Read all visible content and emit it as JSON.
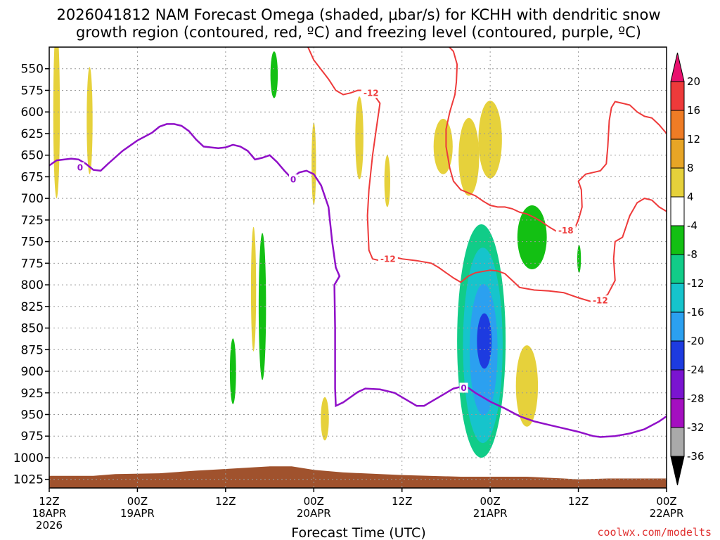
{
  "chart_data": {
    "type": "heatmap",
    "title_line1": "2026041812 NAM Forecast Omega (shaded, μbar/s) for KCHH with dendritic snow",
    "title_line2": "growth region (contoured, red, ºC) and freezing level (contoured, purple, ºC)",
    "xlabel": "Forecast Time (UTC)",
    "credit": "coolwx.com/modelts",
    "x_unit": "hours since 2026-04-18 12Z",
    "x_range": [
      0,
      84
    ],
    "y_unit": "hPa",
    "y_range": [
      1035,
      525
    ],
    "y_ticks": [
      "550",
      "575",
      "600",
      "625",
      "650",
      "675",
      "700",
      "725",
      "750",
      "775",
      "800",
      "825",
      "850",
      "875",
      "900",
      "925",
      "950",
      "975",
      "1000",
      "1025"
    ],
    "x_ticks": [
      {
        "hour": 0,
        "l1": "12Z",
        "l2": "18APR",
        "l3": "2026"
      },
      {
        "hour": 12,
        "l1": "00Z",
        "l2": "19APR",
        "l3": ""
      },
      {
        "hour": 24,
        "l1": "12Z",
        "l2": "",
        "l3": ""
      },
      {
        "hour": 36,
        "l1": "00Z",
        "l2": "20APR",
        "l3": ""
      },
      {
        "hour": 48,
        "l1": "12Z",
        "l2": "",
        "l3": ""
      },
      {
        "hour": 60,
        "l1": "00Z",
        "l2": "21APR",
        "l3": ""
      },
      {
        "hour": 72,
        "l1": "12Z",
        "l2": "",
        "l3": ""
      },
      {
        "hour": 84,
        "l1": "00Z",
        "l2": "22APR",
        "l3": ""
      }
    ],
    "colorbar": {
      "labels": [
        "20",
        "16",
        "12",
        "8",
        "4",
        "-4",
        "-8",
        "-12",
        "-16",
        "-20",
        "-24",
        "-28",
        "-32",
        "-36"
      ],
      "colors": [
        "#e8116e",
        "#ee3a3a",
        "#ef7c25",
        "#e7a526",
        "#e6d13b",
        "#ffffff",
        "#13c013",
        "#11cc88",
        "#16c4cc",
        "#2ba0f0",
        "#1d3be0",
        "#7a14d0",
        "#a40fc0",
        "#aaaaaa",
        "#000000"
      ]
    },
    "freezing_level_label": "0",
    "dgz_labels": [
      "-12",
      "-18",
      "-12",
      "-12"
    ],
    "freezing_level": [
      [
        0,
        662
      ],
      [
        1,
        656
      ],
      [
        3,
        654
      ],
      [
        4,
        655
      ],
      [
        5,
        660
      ],
      [
        6,
        667
      ],
      [
        7,
        668
      ],
      [
        8,
        660
      ],
      [
        10,
        645
      ],
      [
        12,
        633
      ],
      [
        14,
        624
      ],
      [
        15,
        617
      ],
      [
        16,
        614
      ],
      [
        17,
        614
      ],
      [
        18,
        616
      ],
      [
        19,
        622
      ],
      [
        20,
        632
      ],
      [
        21,
        640
      ],
      [
        22,
        641
      ],
      [
        23,
        642
      ],
      [
        24,
        641
      ],
      [
        25,
        638
      ],
      [
        26,
        640
      ],
      [
        27,
        645
      ],
      [
        28,
        655
      ],
      [
        29,
        653
      ],
      [
        30,
        650
      ],
      [
        31,
        658
      ],
      [
        32,
        668
      ],
      [
        33,
        677
      ],
      [
        34,
        670
      ],
      [
        35,
        668
      ],
      [
        36,
        672
      ],
      [
        37,
        685
      ],
      [
        38,
        710
      ],
      [
        38.5,
        750
      ],
      [
        39,
        780
      ],
      [
        39.5,
        790
      ],
      [
        38.8,
        800
      ],
      [
        38.9,
        850
      ],
      [
        38.9,
        920
      ],
      [
        39,
        940
      ],
      [
        40,
        936
      ],
      [
        41,
        930
      ],
      [
        42,
        924
      ],
      [
        43,
        920
      ],
      [
        45,
        921
      ],
      [
        47,
        925
      ],
      [
        49,
        935
      ],
      [
        50,
        940
      ],
      [
        51,
        940
      ],
      [
        52,
        935
      ],
      [
        53,
        930
      ],
      [
        54,
        925
      ],
      [
        55,
        920
      ],
      [
        56,
        918
      ],
      [
        57,
        919
      ],
      [
        58,
        925
      ],
      [
        59,
        930
      ],
      [
        60,
        935
      ],
      [
        62,
        943
      ],
      [
        64,
        952
      ],
      [
        66,
        958
      ],
      [
        68,
        962
      ],
      [
        70,
        966
      ],
      [
        72,
        970
      ],
      [
        74,
        975
      ],
      [
        75,
        976
      ],
      [
        77,
        975
      ],
      [
        79,
        972
      ],
      [
        81,
        967
      ],
      [
        83,
        958
      ],
      [
        84,
        952
      ]
    ],
    "dgz_contours": [
      [
        [
          35,
          521
        ],
        [
          36,
          540
        ],
        [
          38,
          562
        ],
        [
          39,
          575
        ],
        [
          40,
          580
        ],
        [
          41,
          578
        ],
        [
          42,
          575
        ],
        [
          43,
          575
        ],
        [
          44,
          578
        ],
        [
          45,
          590
        ],
        [
          44.5,
          620
        ],
        [
          44,
          650
        ],
        [
          43.5,
          690
        ],
        [
          43.3,
          720
        ],
        [
          43.5,
          760
        ],
        [
          44,
          770
        ],
        [
          45,
          772
        ],
        [
          46,
          770
        ],
        [
          47,
          768
        ],
        [
          48,
          770
        ],
        [
          50,
          772
        ],
        [
          52,
          775
        ],
        [
          53,
          780
        ],
        [
          54,
          786
        ],
        [
          55,
          792
        ],
        [
          56,
          797
        ],
        [
          57,
          790
        ],
        [
          58,
          786
        ],
        [
          60,
          783
        ],
        [
          61,
          784
        ],
        [
          62,
          787
        ],
        [
          63,
          795
        ],
        [
          64,
          803
        ],
        [
          66,
          806
        ],
        [
          68,
          807
        ],
        [
          70,
          809
        ],
        [
          72,
          815
        ],
        [
          74,
          820
        ],
        [
          75,
          818
        ],
        [
          76,
          811
        ],
        [
          77,
          795
        ],
        [
          76.8,
          770
        ],
        [
          77,
          750
        ],
        [
          78,
          745
        ],
        [
          79,
          720
        ],
        [
          80,
          705
        ],
        [
          81,
          700
        ],
        [
          82,
          702
        ],
        [
          83,
          710
        ],
        [
          84,
          715
        ]
      ],
      [
        [
          54,
          521
        ],
        [
          55,
          530
        ],
        [
          55.5,
          545
        ],
        [
          55.4,
          565
        ],
        [
          55.2,
          580
        ],
        [
          54.5,
          600
        ],
        [
          54,
          620
        ],
        [
          54,
          640
        ],
        [
          54.5,
          665
        ],
        [
          55,
          680
        ],
        [
          56,
          690
        ],
        [
          58,
          697
        ],
        [
          59,
          703
        ],
        [
          60,
          708
        ],
        [
          61,
          710
        ],
        [
          62,
          710
        ],
        [
          63,
          712
        ],
        [
          64,
          716
        ],
        [
          65,
          718
        ],
        [
          66,
          722
        ],
        [
          67,
          727
        ],
        [
          68,
          733
        ],
        [
          69,
          738
        ],
        [
          70,
          737
        ],
        [
          71,
          738
        ],
        [
          71.5,
          735
        ],
        [
          72,
          725
        ],
        [
          72.5,
          710
        ],
        [
          72.4,
          690
        ],
        [
          72,
          680
        ],
        [
          73,
          672
        ],
        [
          74,
          670
        ],
        [
          75,
          668
        ],
        [
          75.8,
          660
        ],
        [
          76,
          640
        ],
        [
          76.2,
          610
        ],
        [
          76.5,
          595
        ],
        [
          77,
          588
        ],
        [
          78,
          590
        ],
        [
          79,
          592
        ],
        [
          80,
          600
        ],
        [
          81,
          605
        ],
        [
          82,
          607
        ],
        [
          83,
          615
        ],
        [
          84,
          625
        ]
      ]
    ],
    "omega_regions": [
      {
        "value": 6,
        "center": [
          1,
          600
        ],
        "hwidth": 0.45,
        "hheight": 100
      },
      {
        "value": 6,
        "center": [
          5.5,
          610
        ],
        "hwidth": 0.4,
        "hheight": 62
      },
      {
        "value": -6,
        "center": [
          30.6,
          557
        ],
        "hwidth": 0.5,
        "hheight": 27
      },
      {
        "value": 6,
        "center": [
          36,
          660
        ],
        "hwidth": 0.3,
        "hheight": 48
      },
      {
        "value": 6,
        "center": [
          27.8,
          805
        ],
        "hwidth": 0.35,
        "hheight": 72
      },
      {
        "value": -6,
        "center": [
          29,
          825
        ],
        "hwidth": 0.5,
        "hheight": 85
      },
      {
        "value": -6,
        "center": [
          25,
          900
        ],
        "hwidth": 0.42,
        "hheight": 38
      },
      {
        "value": 6,
        "center": [
          37.5,
          955
        ],
        "hwidth": 0.55,
        "hheight": 25
      },
      {
        "value": 6,
        "center": [
          42.2,
          630
        ],
        "hwidth": 0.55,
        "hheight": 48
      },
      {
        "value": 6,
        "center": [
          46,
          680
        ],
        "hwidth": 0.4,
        "hheight": 30
      },
      {
        "value": 6,
        "center": [
          53.6,
          640
        ],
        "hwidth": 1.3,
        "hheight": 32
      },
      {
        "value": 6,
        "center": [
          57.1,
          652
        ],
        "hwidth": 1.4,
        "hheight": 45
      },
      {
        "value": 6,
        "center": [
          60,
          632
        ],
        "hwidth": 1.6,
        "hheight": 45
      },
      {
        "value": -6,
        "center": [
          65.7,
          745
        ],
        "hwidth": 2.0,
        "hheight": 37
      },
      {
        "value": -6,
        "center": [
          72.1,
          770
        ],
        "hwidth": 0.25,
        "hheight": 16
      },
      {
        "value": 6,
        "center": [
          65,
          917
        ],
        "hwidth": 1.5,
        "hheight": 47
      },
      {
        "value": -10,
        "center": [
          58.8,
          865
        ],
        "hwidth": 3.3,
        "hheight": 135
      },
      {
        "value": -14,
        "center": [
          59.0,
          870
        ],
        "hwidth": 2.7,
        "hheight": 113
      },
      {
        "value": -18,
        "center": [
          59.1,
          875
        ],
        "hwidth": 1.9,
        "hheight": 76
      },
      {
        "value": -22,
        "center": [
          59.2,
          865
        ],
        "hwidth": 1.0,
        "hheight": 32
      }
    ],
    "terrain": [
      [
        0,
        1021
      ],
      [
        6,
        1021
      ],
      [
        9,
        1019
      ],
      [
        15,
        1018
      ],
      [
        20,
        1015
      ],
      [
        24,
        1013
      ],
      [
        28,
        1011
      ],
      [
        30,
        1010
      ],
      [
        33,
        1010
      ],
      [
        36,
        1014
      ],
      [
        40,
        1017
      ],
      [
        48,
        1020
      ],
      [
        56,
        1022
      ],
      [
        65,
        1022
      ],
      [
        70,
        1024
      ],
      [
        72,
        1025
      ],
      [
        76,
        1024
      ],
      [
        84,
        1024
      ]
    ]
  }
}
